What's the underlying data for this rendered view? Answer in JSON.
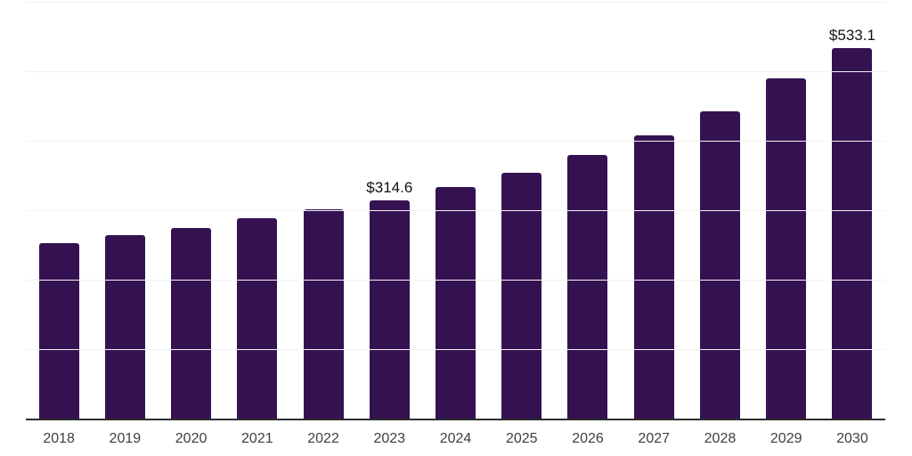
{
  "chart_data": {
    "type": "bar",
    "title": "",
    "xlabel": "",
    "ylabel": "",
    "categories": [
      "2018",
      "2019",
      "2020",
      "2021",
      "2022",
      "2023",
      "2024",
      "2025",
      "2026",
      "2027",
      "2028",
      "2029",
      "2030"
    ],
    "values": [
      253.0,
      263.5,
      275.0,
      288.0,
      301.0,
      314.6,
      333.0,
      354.5,
      379.0,
      407.5,
      442.0,
      489.5,
      533.1
    ],
    "data_labels": {
      "2023": "$314.6",
      "2030": "$533.1"
    },
    "ylim": [
      0,
      600
    ],
    "gridlines": [
      100,
      200,
      300,
      400,
      500,
      600
    ],
    "grid": true,
    "legend": "none",
    "colors": {
      "bar": "#341252",
      "gridline": "#f2f2f2",
      "axis_line": "#2e2e2e",
      "tick_label": "#3f3f3f",
      "data_label": "#111111",
      "background": "#ffffff"
    }
  }
}
